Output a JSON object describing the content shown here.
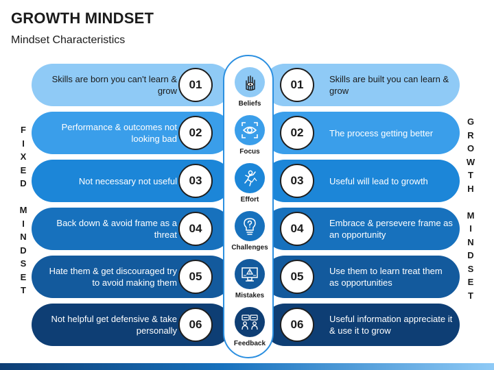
{
  "title": "GROWTH MINDSET",
  "subtitle": "Mindset Characteristics",
  "left_label": [
    "F",
    "I",
    "X",
    "E",
    "D",
    "",
    "M",
    "I",
    "N",
    "D",
    "S",
    "E",
    "T"
  ],
  "right_label": [
    "G",
    "R",
    "O",
    "W",
    "T",
    "H",
    "",
    "M",
    "I",
    "N",
    "D",
    "S",
    "E",
    "T"
  ],
  "rows": [
    {
      "num": "01",
      "fixed": "Skills are born you can't learn & grow",
      "growth": "Skills are built you can learn & grow",
      "category": "Beliefs",
      "icon": "hand-eye-icon",
      "color": "#8fcaf6"
    },
    {
      "num": "02",
      "fixed": "Performance & outcomes not looking bad",
      "growth": "The process getting better",
      "category": "Focus",
      "icon": "eye-focus-icon",
      "color": "#3a9eea"
    },
    {
      "num": "03",
      "fixed": "Not necessary not useful",
      "growth": "Useful will lead to growth",
      "category": "Effort",
      "icon": "climbing-person-icon",
      "color": "#1c86d8"
    },
    {
      "num": "04",
      "fixed": "Back down & avoid frame as a threat",
      "growth": "Embrace & persevere frame as an opportunity",
      "category": "Challenges",
      "icon": "question-bulb-icon",
      "color": "#1771bd"
    },
    {
      "num": "05",
      "fixed": "Hate them & get discouraged try to avoid making them",
      "growth": "Use them to learn treat them as opportunities",
      "category": "Mistakes",
      "icon": "alert-monitor-icon",
      "color": "#135a9d"
    },
    {
      "num": "06",
      "fixed": "Not helpful get defensive & take personally",
      "growth": "Useful information appreciate it & use it to grow",
      "category": "Feedback",
      "icon": "feedback-chat-icon",
      "color": "#0e3e74"
    }
  ]
}
